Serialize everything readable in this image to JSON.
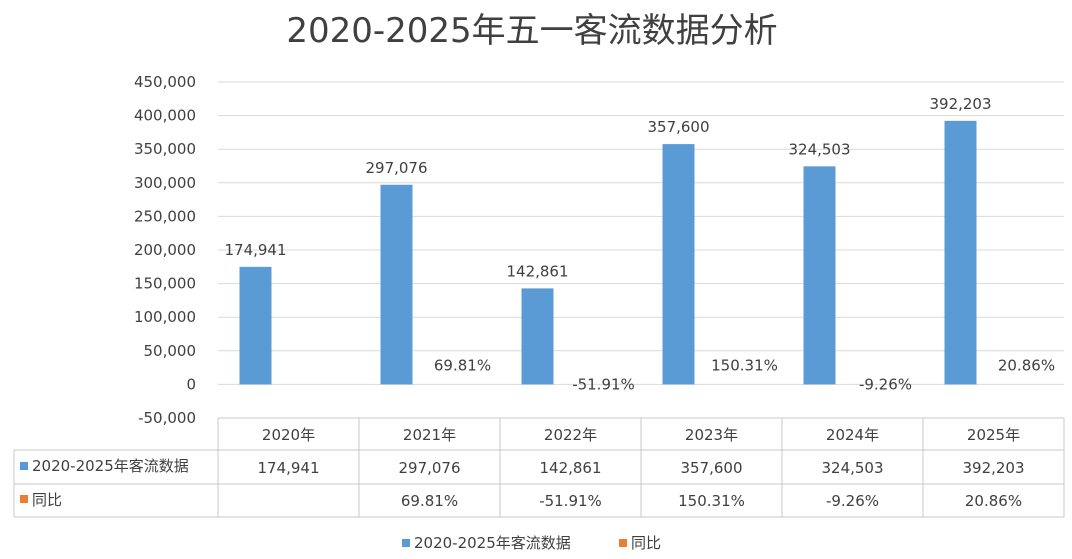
{
  "chart_data": {
    "type": "bar",
    "title": "2020-2025年五一客流数据分析",
    "categories": [
      "2020年",
      "2021年",
      "2022年",
      "2023年",
      "2024年",
      "2025年"
    ],
    "ylim": [
      -50000,
      450000
    ],
    "yticks": [
      "-50,000",
      "0",
      "50,000",
      "100,000",
      "150,000",
      "200,000",
      "250,000",
      "300,000",
      "350,000",
      "400,000",
      "450,000"
    ],
    "grid": true,
    "legend_position": "bottom",
    "series": [
      {
        "name": "2020-2025年客流数据",
        "color": "#5b9bd5",
        "values": [
          174941,
          297076,
          142861,
          357600,
          324503,
          392203
        ],
        "labels": [
          "174,941",
          "297,076",
          "142,861",
          "357,600",
          "324,503",
          "392,203"
        ]
      },
      {
        "name": "同比",
        "color": "#ed7d31",
        "values": [
          null,
          69.81,
          -51.91,
          150.31,
          -9.26,
          20.86
        ],
        "labels": [
          "",
          "69.81%",
          "-51.91%",
          "150.31%",
          "-9.26%",
          "20.86%"
        ]
      }
    ]
  }
}
